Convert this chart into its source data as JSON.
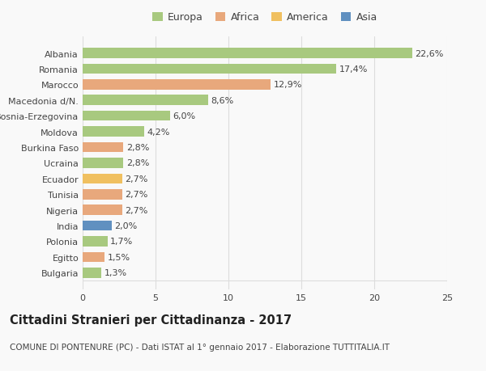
{
  "countries": [
    "Albania",
    "Romania",
    "Marocco",
    "Macedonia d/N.",
    "Bosnia-Erzegovina",
    "Moldova",
    "Burkina Faso",
    "Ucraina",
    "Ecuador",
    "Tunisia",
    "Nigeria",
    "India",
    "Polonia",
    "Egitto",
    "Bulgaria"
  ],
  "values": [
    22.6,
    17.4,
    12.9,
    8.6,
    6.0,
    4.2,
    2.8,
    2.8,
    2.7,
    2.7,
    2.7,
    2.0,
    1.7,
    1.5,
    1.3
  ],
  "labels": [
    "22,6%",
    "17,4%",
    "12,9%",
    "8,6%",
    "6,0%",
    "4,2%",
    "2,8%",
    "2,8%",
    "2,7%",
    "2,7%",
    "2,7%",
    "2,0%",
    "1,7%",
    "1,5%",
    "1,3%"
  ],
  "colors": [
    "#a8c97f",
    "#a8c97f",
    "#e8a87c",
    "#a8c97f",
    "#a8c97f",
    "#a8c97f",
    "#e8a87c",
    "#a8c97f",
    "#f0c060",
    "#e8a87c",
    "#e8a87c",
    "#6090c0",
    "#a8c97f",
    "#e8a87c",
    "#a8c97f"
  ],
  "legend": {
    "labels": [
      "Europa",
      "Africa",
      "America",
      "Asia"
    ],
    "colors": [
      "#a8c97f",
      "#e8a87c",
      "#f0c060",
      "#6090c0"
    ]
  },
  "xlim": [
    0,
    25
  ],
  "xticks": [
    0,
    5,
    10,
    15,
    20,
    25
  ],
  "title": "Cittadini Stranieri per Cittadinanza - 2017",
  "subtitle": "COMUNE DI PONTENURE (PC) - Dati ISTAT al 1° gennaio 2017 - Elaborazione TUTTITALIA.IT",
  "bg_color": "#f9f9f9",
  "grid_color": "#dddddd",
  "text_color": "#444444",
  "label_fontsize": 8.0,
  "tick_fontsize": 8.0,
  "title_fontsize": 10.5,
  "subtitle_fontsize": 7.5
}
